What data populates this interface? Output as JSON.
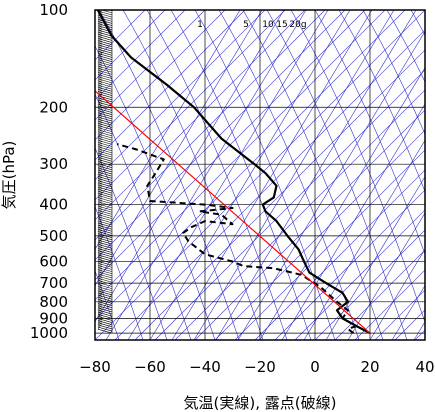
{
  "chart_data": {
    "type": "line",
    "title": "",
    "xlabel": "気温(実線), 露点(破線)",
    "ylabel": "気圧(hPa)",
    "x_range": [
      -80,
      40
    ],
    "x_ticks": [
      -80,
      -60,
      -40,
      -20,
      0,
      20,
      40
    ],
    "y_range": [
      1050,
      100
    ],
    "y_scale": "log",
    "y_ticks": [
      100,
      200,
      300,
      400,
      500,
      600,
      700,
      800,
      900,
      1000
    ],
    "grid": true,
    "mixing_ratio_labels": [
      "1",
      "5",
      "10",
      "15",
      "20g"
    ],
    "series": [
      {
        "style": "solid-black",
        "x": [
          20,
          15,
          10,
          8,
          12,
          10,
          4,
          -2,
          -4,
          -6,
          -10,
          -14,
          -18,
          -19,
          -15,
          -14,
          -18,
          -22,
          -34,
          -44,
          -54,
          -67,
          -74,
          -79
        ],
        "y": [
          1000,
          950,
          900,
          850,
          800,
          750,
          700,
          650,
          600,
          550,
          500,
          450,
          420,
          400,
          380,
          350,
          320,
          300,
          250,
          200,
          170,
          140,
          120,
          100
        ]
      },
      {
        "style": "dashed-black",
        "x": [
          14,
          12,
          15,
          10,
          12,
          8,
          2,
          -5,
          -15,
          -26,
          -30,
          -40,
          -46,
          -48,
          -45,
          -40,
          -30,
          -34,
          -42,
          -30,
          -40,
          -60,
          -61,
          -58,
          -55,
          -65,
          -72
        ],
        "y": [
          1000,
          970,
          950,
          900,
          850,
          800,
          720,
          660,
          630,
          620,
          600,
          570,
          520,
          490,
          470,
          450,
          460,
          430,
          420,
          410,
          400,
          390,
          350,
          320,
          290,
          270,
          260
        ]
      },
      {
        "style": "solid-red",
        "x": [
          20,
          -81
        ],
        "y": [
          1000,
          175
        ]
      }
    ],
    "colors": {
      "temperature": "#000000",
      "dewpoint": "#000000",
      "reference": "#ff0000",
      "guide_lines": "#3333cc",
      "grid": "#000000"
    }
  }
}
